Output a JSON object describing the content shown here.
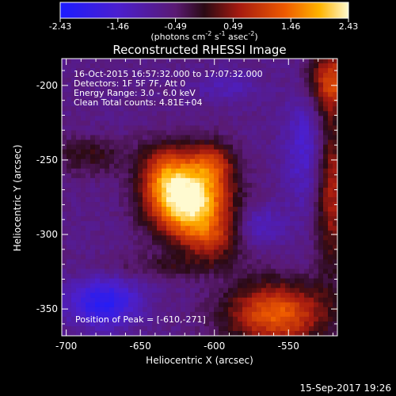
{
  "colorbar": {
    "tick_labels": [
      "-2.43",
      "-1.46",
      "-0.49",
      "0.49",
      "1.46",
      "2.43"
    ],
    "min": -2.43,
    "max": 2.43,
    "unit_label_parts": {
      "a": "(photons cm",
      "a_sup": "-2",
      "b": " s",
      "b_sup": "-1",
      "c": " asec",
      "c_sup": "-2",
      "d": ")"
    }
  },
  "plot": {
    "title": "Reconstructed RHESSI Image",
    "xlabel": "Heliocentric X (arcsec)",
    "ylabel": "Heliocentric Y (arcsec)",
    "x_ticks": [
      "-700",
      "-650",
      "-600",
      "-550"
    ],
    "y_ticks": [
      "-200",
      "-250",
      "-300",
      "-350"
    ],
    "xlim": [
      -703,
      -517
    ],
    "ylim": [
      -368,
      -182
    ]
  },
  "info": {
    "line1": "16-Oct-2015 16:57:32.000 to 17:07:32.000",
    "line2": "Detectors: 1F 5F 7F, Att 0",
    "line3": "Energy Range: 3.0 - 6.0 keV",
    "line4": "Clean     Total counts: 4.81E+04",
    "peak": "Position of Peak = [-610,-271]"
  },
  "footer": {
    "timestamp": "15-Sep-2017 19:26"
  },
  "colors": {
    "background": "#000000",
    "text": "#ffffff"
  }
}
